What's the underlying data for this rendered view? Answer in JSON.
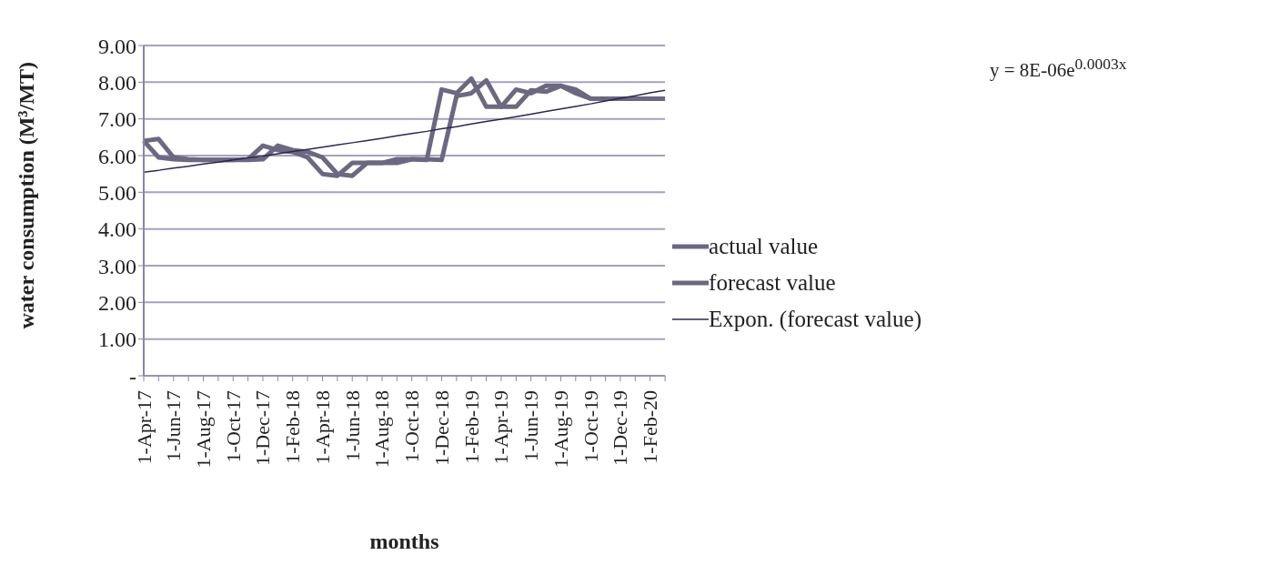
{
  "chart_data": {
    "type": "line",
    "xlabel": "months",
    "ylabel": "water consumption (M³/MT)",
    "categories": [
      "1-Apr-17",
      null,
      "1-Jun-17",
      null,
      "1-Aug-17",
      null,
      "1-Oct-17",
      null,
      "1-Dec-17",
      null,
      "1-Feb-18",
      null,
      "1-Apr-18",
      null,
      "1-Jun-18",
      null,
      "1-Aug-18",
      null,
      "1-Oct-18",
      null,
      "1-Dec-18",
      null,
      "1-Feb-19",
      null,
      "1-Apr-19",
      null,
      "1-Jun-19",
      null,
      "1-Aug-19",
      null,
      "1-Oct-19",
      null,
      "1-Dec-19",
      null,
      "1-Feb-20",
      null
    ],
    "series": [
      {
        "name": "actual value",
        "color": "#6b6880",
        "values": [
          6.4,
          5.95,
          5.9,
          5.88,
          5.88,
          5.88,
          5.88,
          5.9,
          6.27,
          6.15,
          6.1,
          5.95,
          5.5,
          5.45,
          5.8,
          5.8,
          5.8,
          5.9,
          5.9,
          5.88,
          7.8,
          7.7,
          8.1,
          7.33,
          7.33,
          7.8,
          7.7,
          7.9,
          7.9,
          7.7,
          7.55,
          7.55,
          7.55,
          7.55,
          7.55,
          7.55
        ]
      },
      {
        "name": "forecast value",
        "color": "#6b6880",
        "values": [
          6.4,
          6.45,
          5.95,
          5.9,
          5.88,
          5.88,
          5.88,
          5.88,
          5.9,
          6.27,
          6.15,
          6.1,
          5.95,
          5.5,
          5.45,
          5.8,
          5.8,
          5.8,
          5.9,
          5.9,
          5.88,
          7.62,
          7.7,
          8.05,
          7.33,
          7.33,
          7.78,
          7.74,
          7.9,
          7.8,
          7.55,
          7.55,
          7.55,
          7.55,
          7.55,
          7.55
        ]
      },
      {
        "name": "Expon. (forecast value)",
        "type": "line",
        "color": "#2a2850",
        "values": [
          5.55,
          5.6,
          5.66,
          5.71,
          5.77,
          5.82,
          5.88,
          5.94,
          5.99,
          6.05,
          6.11,
          6.17,
          6.23,
          6.29,
          6.35,
          6.41,
          6.47,
          6.54,
          6.6,
          6.66,
          6.73,
          6.79,
          6.86,
          6.93,
          6.99,
          7.06,
          7.13,
          7.2,
          7.27,
          7.34,
          7.41,
          7.49,
          7.56,
          7.63,
          7.71,
          7.78
        ]
      }
    ],
    "ylim": [
      0,
      9
    ],
    "yticks": [
      {
        "value": 0,
        "label": "-"
      },
      {
        "value": 1,
        "label": "1.00"
      },
      {
        "value": 2,
        "label": "2.00"
      },
      {
        "value": 3,
        "label": "3.00"
      },
      {
        "value": 4,
        "label": "4.00"
      },
      {
        "value": 5,
        "label": "5.00"
      },
      {
        "value": 6,
        "label": "6.00"
      },
      {
        "value": 7,
        "label": "7.00"
      },
      {
        "value": 8,
        "label": "8.00"
      },
      {
        "value": 9,
        "label": "9.00"
      }
    ],
    "grid": "y",
    "legend": "right",
    "marker": "none",
    "line_style": "solid",
    "annotations": [
      "y = 8E-06e$^{0.0003x}$"
    ]
  }
}
